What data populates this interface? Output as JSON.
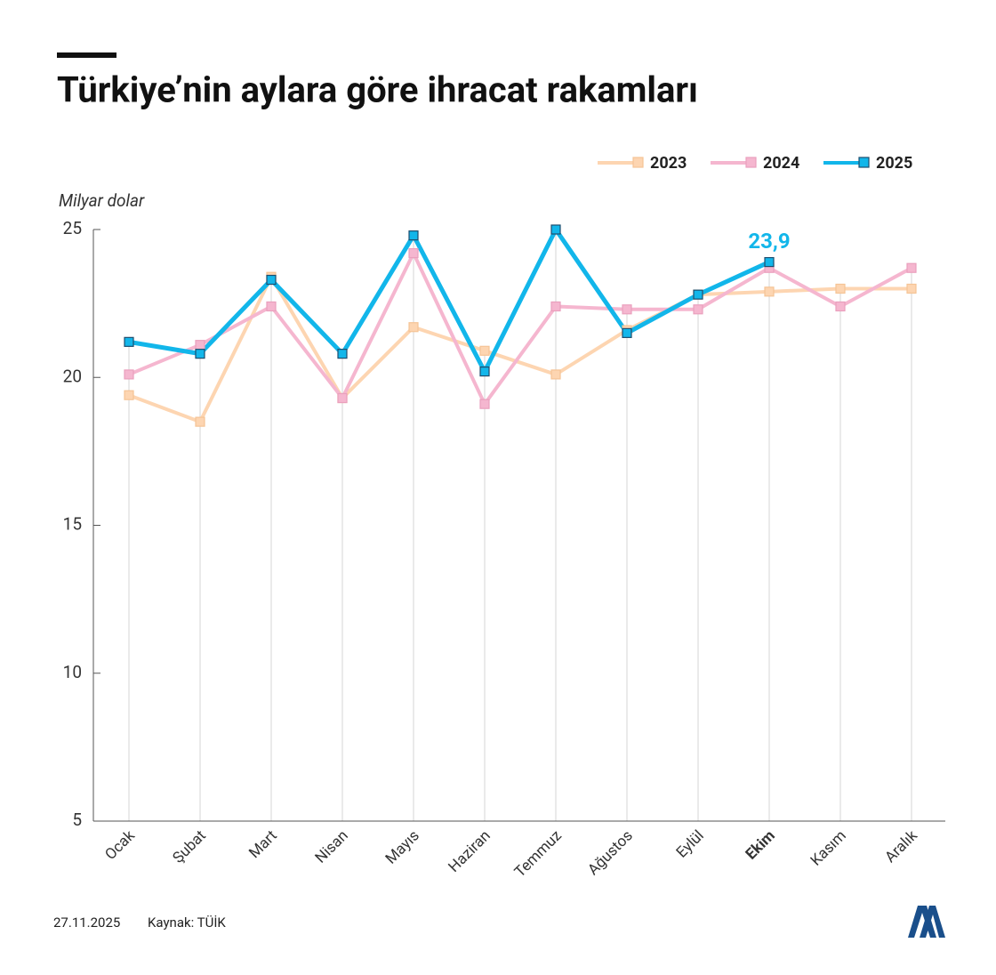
{
  "chart_data": {
    "type": "line",
    "title": "Türkiye’nin aylara göre ihracat rakamları",
    "y_label": "Milyar dolar",
    "categories": [
      "Ocak",
      "Şubat",
      "Mart",
      "Nisan",
      "Mayıs",
      "Haziran",
      "Temmuz",
      "Ağustos",
      "Eylül",
      "Ekim",
      "Kasım",
      "Aralık"
    ],
    "highlight_index": 9,
    "series": [
      {
        "name": "2023",
        "color": "#fdd5b1",
        "values": [
          19.4,
          18.5,
          23.4,
          19.3,
          21.7,
          20.9,
          20.1,
          21.6,
          22.8,
          22.9,
          23.0,
          23.0
        ]
      },
      {
        "name": "2024",
        "color": "#f5b6cf",
        "values": [
          20.1,
          21.1,
          22.4,
          19.3,
          24.2,
          19.1,
          22.4,
          22.3,
          22.3,
          23.7,
          22.4,
          23.7
        ]
      },
      {
        "name": "2025",
        "color": "#12b6ea",
        "values": [
          21.2,
          20.8,
          23.3,
          20.8,
          24.8,
          20.2,
          25.0,
          21.5,
          22.8,
          23.9,
          null,
          null
        ],
        "value_labels": [
          null,
          null,
          null,
          null,
          null,
          null,
          null,
          null,
          null,
          "23,9",
          null,
          null
        ]
      }
    ],
    "ylim": [
      5,
      25
    ],
    "yticks": [
      5,
      10,
      15,
      20,
      25
    ],
    "grid": true,
    "legend": "top-right",
    "date": "27.11.2025",
    "source": "Kaynak: TÜİK"
  }
}
